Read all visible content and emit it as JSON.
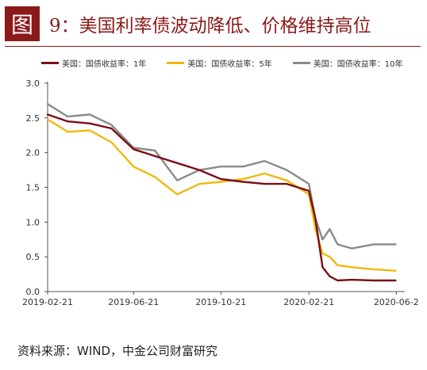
{
  "header": {
    "figure_label": "图",
    "title": "9：美国利率债波动降低、价格维持高位"
  },
  "source": "资料来源：WIND，中金公司财富研究",
  "colors": {
    "accent": "#8b1a1a",
    "series_1y": "#7b0f16",
    "series_5y": "#f0b80e",
    "series_10y": "#8a8a8a"
  },
  "chart_data": {
    "type": "line",
    "ylim": [
      0,
      3
    ],
    "yticks": [
      "0.0",
      "0.5",
      "1.0",
      "1.5",
      "2.0",
      "2.5",
      "3.0"
    ],
    "xticks": [
      "2019-02-21",
      "2019-06-21",
      "2019-10-21",
      "2020-02-21",
      "2020-06-2"
    ],
    "grid": false,
    "legend_position": "top",
    "x": [
      "2019-02-21",
      "2019-03-21",
      "2019-04-21",
      "2019-05-21",
      "2019-06-21",
      "2019-07-21",
      "2019-08-21",
      "2019-09-21",
      "2019-10-21",
      "2019-11-21",
      "2019-12-21",
      "2020-01-21",
      "2020-02-21",
      "2020-03-01",
      "2020-03-11",
      "2020-03-21",
      "2020-04-01",
      "2020-04-21",
      "2020-05-21",
      "2020-06-21"
    ],
    "series": [
      {
        "name": "美国：国债收益率：1年",
        "color": "#7b0f16",
        "values": [
          2.55,
          2.45,
          2.42,
          2.35,
          2.05,
          1.95,
          1.85,
          1.75,
          1.62,
          1.58,
          1.55,
          1.55,
          1.45,
          1.05,
          0.35,
          0.22,
          0.16,
          0.17,
          0.16,
          0.16
        ]
      },
      {
        "name": "美国：国债收益率：5年",
        "color": "#f0b80e",
        "values": [
          2.48,
          2.3,
          2.32,
          2.15,
          1.8,
          1.65,
          1.4,
          1.55,
          1.58,
          1.62,
          1.7,
          1.6,
          1.4,
          0.9,
          0.55,
          0.5,
          0.38,
          0.35,
          0.32,
          0.3
        ]
      },
      {
        "name": "美国：国债收益率：10年",
        "color": "#8a8a8a",
        "values": [
          2.7,
          2.52,
          2.55,
          2.4,
          2.07,
          2.03,
          1.6,
          1.75,
          1.8,
          1.8,
          1.88,
          1.75,
          1.55,
          1.05,
          0.75,
          0.9,
          0.68,
          0.62,
          0.68,
          0.68
        ]
      }
    ]
  }
}
